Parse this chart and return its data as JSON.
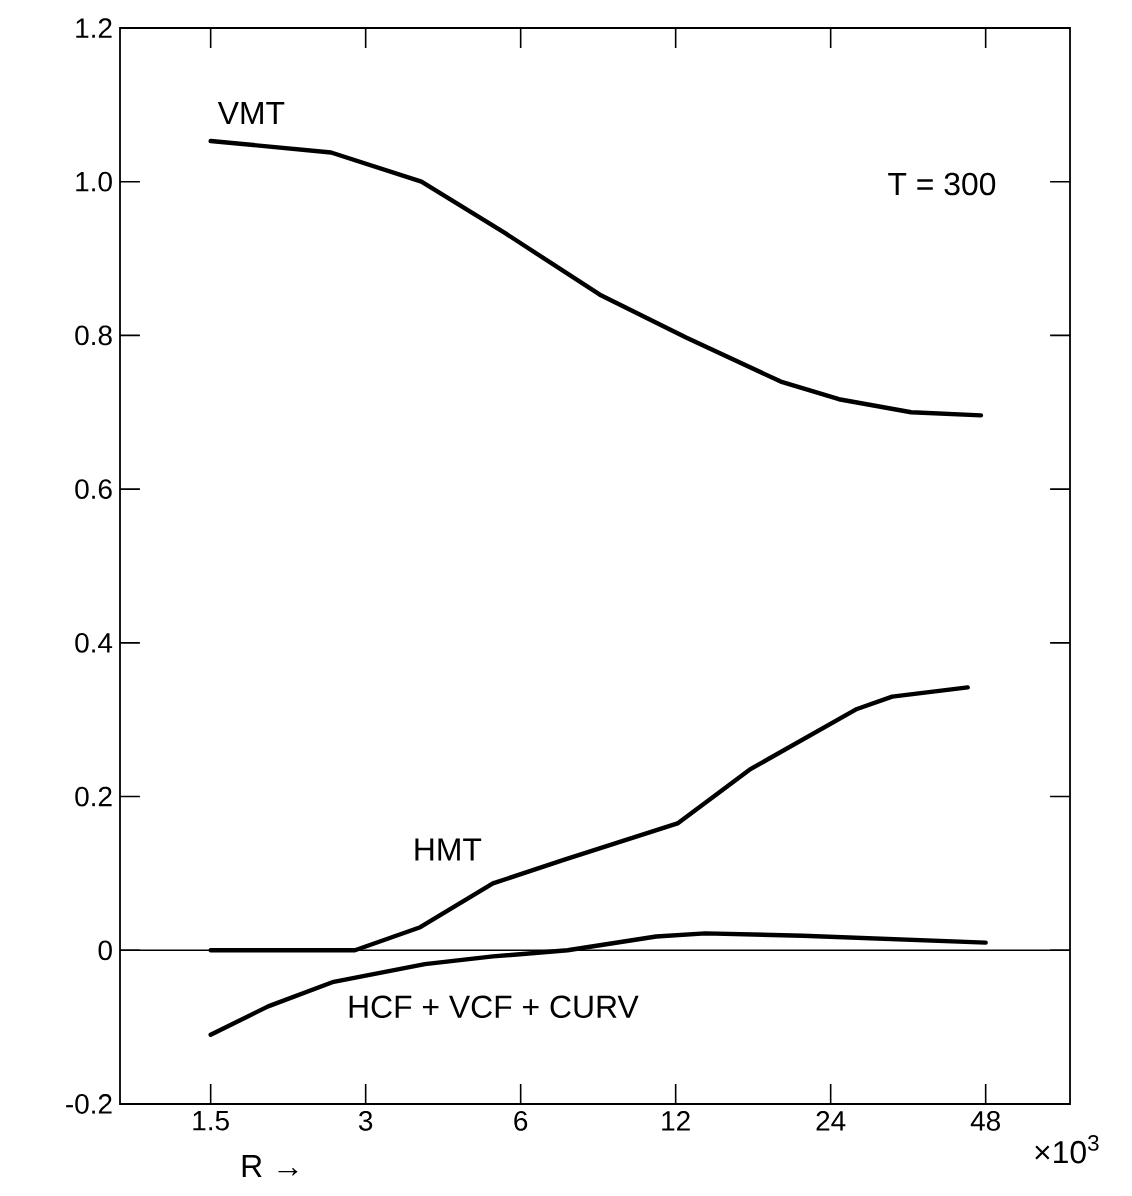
{
  "chart_data": {
    "type": "line",
    "log": "x",
    "xlabel": "R →",
    "annotations": [
      "T = 300",
      "×10$^{3}$"
    ],
    "xlim": [
      1.0,
      70
    ],
    "xticks": [
      1.5,
      3,
      6,
      12,
      24,
      48
    ],
    "ylim": [
      -0.2,
      1.2
    ],
    "yticks": [
      -0.2,
      0,
      0.2,
      0.4,
      0.6,
      0.8,
      {
        "value": 1.0,
        "label": "1.0"
      },
      1.2
    ],
    "ref_lines": [
      {
        "axis": "y",
        "value": 0
      }
    ],
    "series": [
      {
        "name": "VMT",
        "color": "#000000",
        "x": [
          1.5,
          2.57,
          3.85,
          5.6,
          8.55,
          12.6,
          19.2,
          24.9,
          34.4,
          47
        ],
        "values": [
          1.053,
          1.038,
          1.0,
          0.933,
          0.853,
          0.797,
          0.74,
          0.717,
          0.7,
          0.696
        ]
      },
      {
        "name": "HMT",
        "color": "#000000",
        "x": [
          1.5,
          2.86,
          3.83,
          5.3,
          7.3,
          12.1,
          16.7,
          27.0,
          31.6,
          44.3
        ],
        "values": [
          0.0,
          0.0,
          0.03,
          0.087,
          0.118,
          0.165,
          0.235,
          0.314,
          0.33,
          0.342
        ]
      },
      {
        "name": "HCF + VCF + CURV",
        "color": "#000000",
        "x": [
          1.5,
          1.94,
          2.6,
          3.91,
          5.3,
          7.4,
          11,
          13.7,
          21.2,
          48
        ],
        "values": [
          -0.11,
          -0.073,
          -0.041,
          -0.018,
          -0.008,
          0.0,
          0.018,
          0.022,
          0.019,
          0.01
        ]
      }
    ]
  }
}
